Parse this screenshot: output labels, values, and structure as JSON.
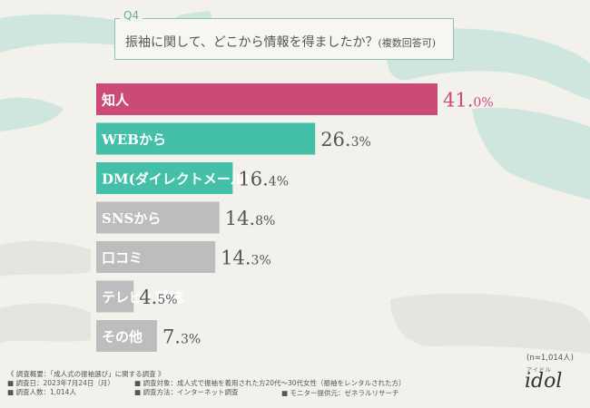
{
  "question": {
    "number": "Q4",
    "text": "振袖に関して、どこから情報を得ましたか？",
    "note": "(複数回答可)"
  },
  "chart_data": {
    "type": "bar",
    "orientation": "horizontal",
    "categories": [
      "知人",
      "WEBから",
      "DM(ダイレクトメール)",
      "SNSから",
      "口コミ",
      "テレビ・雑誌",
      "その他"
    ],
    "values": [
      41.0,
      26.3,
      16.4,
      14.8,
      14.3,
      4.5,
      7.3
    ],
    "value_labels": [
      {
        "int": "41.",
        "dec": "0%"
      },
      {
        "int": "26.",
        "dec": "3%"
      },
      {
        "int": "16.",
        "dec": "4%"
      },
      {
        "int": "14.",
        "dec": "8%"
      },
      {
        "int": "14.",
        "dec": "3%"
      },
      {
        "int": "4.",
        "dec": "5%"
      },
      {
        "int": "7.",
        "dec": "3%"
      }
    ],
    "colors": [
      "#cc4a78",
      "#45c0a8",
      "#45c0a8",
      "#bdbdbd",
      "#bdbdbd",
      "#bdbdbd",
      "#bdbdbd"
    ],
    "label_colors": [
      "#cc4a78",
      "#555555",
      "#555555",
      "#555555",
      "#555555",
      "#555555",
      "#555555"
    ],
    "xlim": [
      0,
      41
    ]
  },
  "sample_size": "(n=1,014人)",
  "footer": {
    "title": "《 調査概要：「成人式の振袖選び」に関する調査 》",
    "date": "■ 調査日：2023年7月24日（月）",
    "respondents": "■ 調査人数：1,014人",
    "target": "■ 調査対象：成人式で振袖を着用された方20代～30代女性（振袖をレンタルされた方）",
    "method": "■ 調査方法：インターネット調査",
    "provider": "■ モニター提供元：ゼネラルリサーチ"
  },
  "logo": {
    "reading": "アイドル",
    "name": "idol"
  }
}
